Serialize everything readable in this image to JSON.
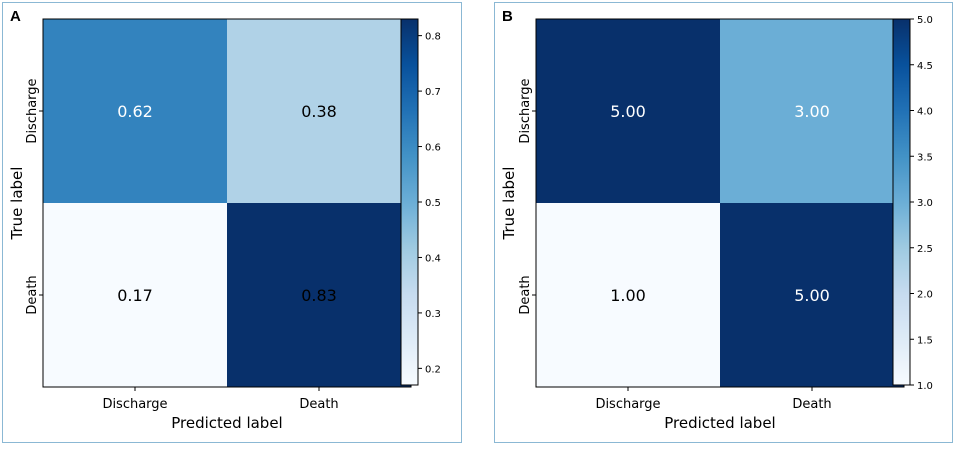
{
  "chart_data": [
    {
      "panel": "A",
      "type": "heatmap",
      "xlabel": "Predicted label",
      "ylabel": "True label",
      "x_categories": [
        "Discharge",
        "Death"
      ],
      "y_categories": [
        "Discharge",
        "Death"
      ],
      "values": [
        [
          0.62,
          0.38
        ],
        [
          0.17,
          0.83
        ]
      ],
      "value_labels": [
        [
          "0.62",
          "0.38"
        ],
        [
          "0.17",
          "0.83"
        ]
      ],
      "colormap": "Blues",
      "vmin": 0.17,
      "vmax": 0.83,
      "colorbar_ticks": [
        "0.2",
        "0.3",
        "0.4",
        "0.5",
        "0.6",
        "0.7",
        "0.8"
      ],
      "colorbar_tick_values": [
        0.2,
        0.3,
        0.4,
        0.5,
        0.6,
        0.7,
        0.8
      ],
      "text_colors": [
        [
          "#ffffff",
          "#000000"
        ],
        [
          "#000000",
          "#000000"
        ]
      ]
    },
    {
      "panel": "B",
      "type": "heatmap",
      "xlabel": "Predicted label",
      "ylabel": "True label",
      "x_categories": [
        "Discharge",
        "Death"
      ],
      "y_categories": [
        "Discharge",
        "Death"
      ],
      "values": [
        [
          5.0,
          3.0
        ],
        [
          1.0,
          5.0
        ]
      ],
      "value_labels": [
        [
          "5.00",
          "3.00"
        ],
        [
          "1.00",
          "5.00"
        ]
      ],
      "colormap": "Blues",
      "vmin": 1.0,
      "vmax": 5.0,
      "colorbar_ticks": [
        "1.0",
        "1.5",
        "2.0",
        "2.5",
        "3.0",
        "3.5",
        "4.0",
        "4.5",
        "5.0"
      ],
      "colorbar_tick_values": [
        1.0,
        1.5,
        2.0,
        2.5,
        3.0,
        3.5,
        4.0,
        4.5,
        5.0
      ],
      "text_colors": [
        [
          "#ffffff",
          "#ffffff"
        ],
        [
          "#000000",
          "#ffffff"
        ]
      ]
    }
  ]
}
